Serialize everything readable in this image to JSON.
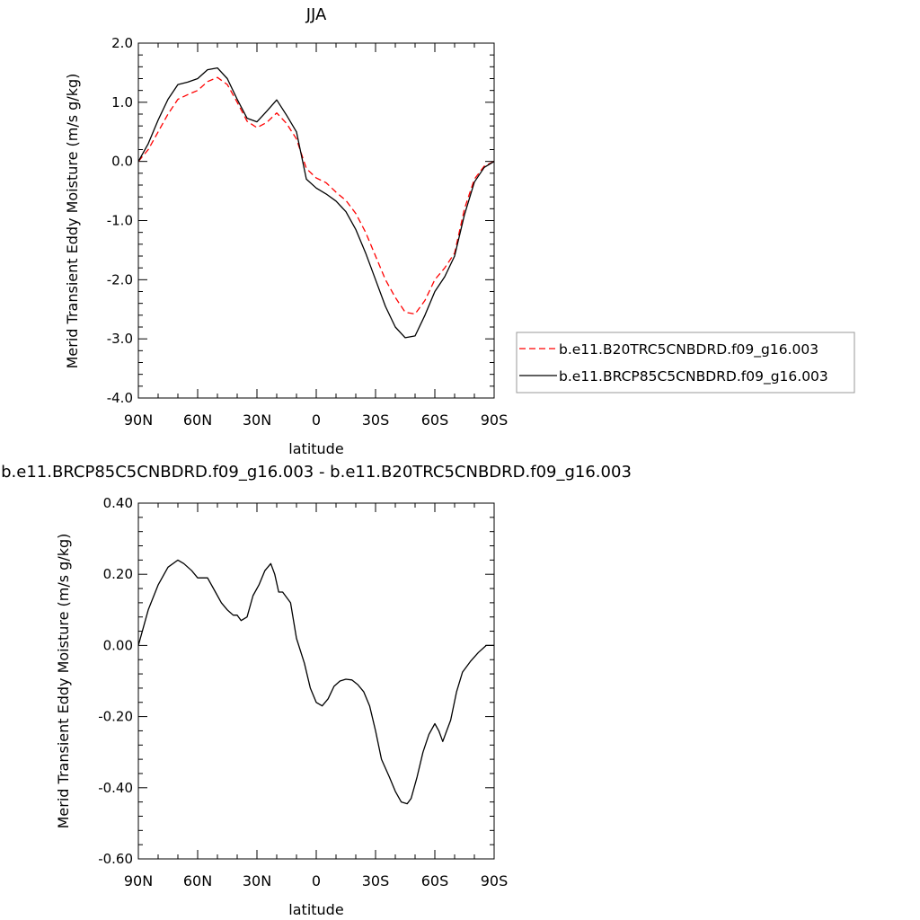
{
  "chart_data": [
    {
      "type": "line",
      "title": "JJA",
      "xlabel": "latitude",
      "ylabel": "Merid Transient Eddy Moisture (m/s g/kg)",
      "x_ticks": [
        90,
        60,
        30,
        0,
        -30,
        -60,
        -90
      ],
      "x_tick_labels": [
        "90N",
        "60N",
        "30N",
        "0",
        "30S",
        "60S",
        "90S"
      ],
      "xlim": [
        90,
        -90
      ],
      "ylim": [
        -4.0,
        2.0
      ],
      "y_ticks": [
        2.0,
        1.0,
        0.0,
        -1.0,
        -2.0,
        -3.0,
        -4.0
      ],
      "y_tick_labels": [
        "2.0",
        "1.0",
        "0.0",
        "-1.0",
        "-2.0",
        "-3.0",
        "-4.0"
      ],
      "legend_position": "right",
      "series": [
        {
          "name": "b.e11.B20TRC5CNBDRD.f09_g16.003",
          "color": "#ff0000",
          "dash": "dashed",
          "x": [
            90,
            85,
            80,
            75,
            70,
            65,
            60,
            55,
            50,
            45,
            40,
            35,
            30,
            25,
            20,
            15,
            10,
            5,
            0,
            -5,
            -10,
            -15,
            -20,
            -25,
            -30,
            -35,
            -40,
            -45,
            -50,
            -55,
            -60,
            -65,
            -70,
            -75,
            -80,
            -85,
            -90
          ],
          "y": [
            0.0,
            0.2,
            0.5,
            0.8,
            1.05,
            1.13,
            1.2,
            1.35,
            1.42,
            1.3,
            1.0,
            0.68,
            0.57,
            0.66,
            0.82,
            0.64,
            0.38,
            -0.12,
            -0.28,
            -0.36,
            -0.52,
            -0.66,
            -0.88,
            -1.2,
            -1.6,
            -2.0,
            -2.3,
            -2.55,
            -2.58,
            -2.35,
            -2.0,
            -1.8,
            -1.55,
            -0.8,
            -0.3,
            -0.08,
            0.0
          ]
        },
        {
          "name": "b.e11.BRCP85C5CNBDRD.f09_g16.003",
          "color": "#000000",
          "dash": "solid",
          "x": [
            90,
            85,
            80,
            75,
            70,
            65,
            60,
            55,
            50,
            45,
            40,
            35,
            30,
            25,
            20,
            15,
            10,
            5,
            0,
            -5,
            -10,
            -15,
            -20,
            -25,
            -30,
            -35,
            -40,
            -45,
            -50,
            -55,
            -60,
            -65,
            -70,
            -75,
            -80,
            -85,
            -90
          ],
          "y": [
            0.0,
            0.3,
            0.7,
            1.05,
            1.3,
            1.34,
            1.4,
            1.55,
            1.58,
            1.4,
            1.05,
            0.73,
            0.67,
            0.85,
            1.04,
            0.78,
            0.5,
            -0.3,
            -0.45,
            -0.55,
            -0.67,
            -0.85,
            -1.15,
            -1.55,
            -2.0,
            -2.45,
            -2.8,
            -2.98,
            -2.95,
            -2.6,
            -2.2,
            -1.95,
            -1.6,
            -0.9,
            -0.35,
            -0.1,
            0.0
          ]
        }
      ]
    },
    {
      "type": "line",
      "title": "b.e11.BRCP85C5CNBDRD.f09_g16.003 - b.e11.B20TRC5CNBDRD.f09_g16.003",
      "xlabel": "latitude",
      "ylabel": "Merid Transient Eddy Moisture (m/s g/kg)",
      "x_ticks": [
        90,
        60,
        30,
        0,
        -30,
        -60,
        -90
      ],
      "x_tick_labels": [
        "90N",
        "60N",
        "30N",
        "0",
        "30S",
        "60S",
        "90S"
      ],
      "xlim": [
        90,
        -90
      ],
      "ylim": [
        -0.6,
        0.4
      ],
      "y_ticks": [
        0.4,
        0.2,
        0.0,
        -0.2,
        -0.4,
        -0.6
      ],
      "y_tick_labels": [
        "0.40",
        "0.20",
        "0.00",
        "-0.20",
        "-0.40",
        "-0.60"
      ],
      "series": [
        {
          "color": "#000000",
          "dash": "solid",
          "x": [
            90,
            85,
            80,
            75,
            70,
            67,
            63,
            60,
            55,
            51,
            48,
            45,
            42,
            40,
            38,
            35,
            32,
            29,
            26,
            23,
            21,
            19,
            17,
            13,
            10,
            6,
            3,
            0,
            -3,
            -6,
            -9,
            -12,
            -15,
            -18,
            -21,
            -24,
            -27,
            -30,
            -33,
            -37,
            -40,
            -43,
            -46,
            -48,
            -51,
            -54,
            -57,
            -60,
            -62,
            -64,
            -66,
            -68,
            -71,
            -74,
            -78,
            -82,
            -86,
            -90
          ],
          "y": [
            0.0,
            0.1,
            0.17,
            0.22,
            0.24,
            0.23,
            0.21,
            0.19,
            0.19,
            0.15,
            0.12,
            0.1,
            0.085,
            0.085,
            0.07,
            0.08,
            0.14,
            0.17,
            0.21,
            0.23,
            0.2,
            0.15,
            0.15,
            0.12,
            0.02,
            -0.05,
            -0.12,
            -0.16,
            -0.17,
            -0.15,
            -0.115,
            -0.1,
            -0.095,
            -0.097,
            -0.11,
            -0.13,
            -0.17,
            -0.24,
            -0.32,
            -0.37,
            -0.41,
            -0.44,
            -0.445,
            -0.43,
            -0.37,
            -0.3,
            -0.25,
            -0.22,
            -0.24,
            -0.27,
            -0.24,
            -0.21,
            -0.13,
            -0.075,
            -0.045,
            -0.02,
            0.0,
            0.0
          ]
        }
      ]
    }
  ]
}
